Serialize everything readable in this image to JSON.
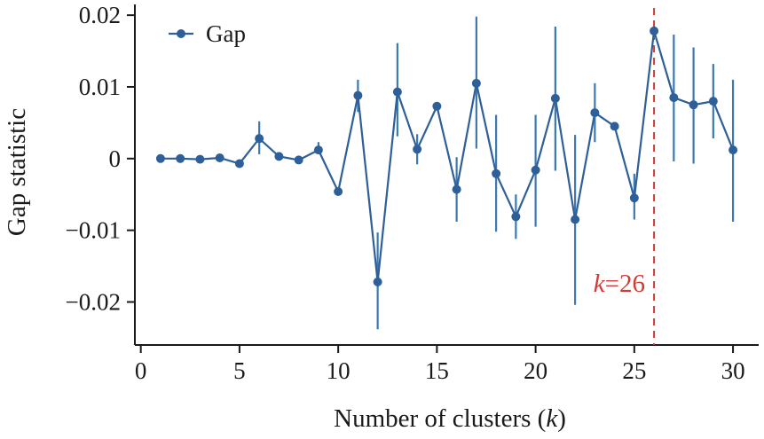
{
  "chart_data": {
    "type": "line",
    "xlabel": "Number of clusters (",
    "xlabel_var": "k",
    "xlabel_end": ")",
    "ylabel": "Gap statistic",
    "xlim": [
      -0.3,
      31.3
    ],
    "ylim": [
      -0.026,
      0.0215
    ],
    "xticks": [
      0,
      5,
      10,
      15,
      20,
      25,
      30
    ],
    "xtick_labels": [
      "0",
      "5",
      "10",
      "15",
      "20",
      "25",
      "30"
    ],
    "yticks": [
      -0.02,
      -0.01,
      0,
      0.01,
      0.02
    ],
    "ytick_labels": [
      "−0.02",
      "−0.01",
      "0",
      "0.01",
      "0.02"
    ],
    "grid": false,
    "legend_position": "top-left",
    "series": [
      {
        "name": "Gap",
        "color": "#2e5f99",
        "errorbar_color": "#3b79b0",
        "x": [
          1,
          2,
          3,
          4,
          5,
          6,
          7,
          8,
          9,
          10,
          11,
          12,
          13,
          14,
          15,
          16,
          17,
          18,
          19,
          20,
          21,
          22,
          23,
          24,
          25,
          26,
          27,
          28,
          29,
          30
        ],
        "y": [
          0.0,
          0.0,
          -0.0001,
          0.0001,
          -0.0007,
          0.0028,
          0.0003,
          -0.0002,
          0.0012,
          -0.0046,
          0.0088,
          -0.0172,
          0.0093,
          0.0013,
          0.0073,
          -0.0043,
          0.0105,
          -0.0021,
          -0.0081,
          -0.0016,
          0.0084,
          -0.0085,
          0.0064,
          0.0045,
          -0.0055,
          0.0178,
          0.0085,
          0.0075,
          0.008,
          0.0012
        ],
        "err_low": [
          0.0,
          0.0,
          -0.0001,
          0.0001,
          -0.0007,
          0.0006,
          0.0003,
          -0.0002,
          0.0007,
          -0.0046,
          0.0065,
          -0.0238,
          0.0031,
          -0.0008,
          0.0073,
          -0.0088,
          0.0014,
          -0.0102,
          -0.0112,
          -0.0095,
          -0.0017,
          -0.0204,
          0.0023,
          0.0045,
          -0.0085,
          0.0178,
          -0.0004,
          -0.0007,
          0.0028,
          -0.0088
        ],
        "err_high": [
          0.0,
          0.0,
          -0.0001,
          0.0001,
          -0.0007,
          0.0052,
          0.0003,
          -0.0002,
          0.0023,
          -0.0046,
          0.011,
          -0.0103,
          0.0161,
          0.0034,
          0.0073,
          0.0002,
          0.0198,
          0.0061,
          -0.005,
          0.0061,
          0.0184,
          0.0033,
          0.0105,
          0.0045,
          -0.0021,
          0.0178,
          0.0173,
          0.0155,
          0.0132,
          0.011
        ]
      }
    ],
    "annotation": {
      "x": 26,
      "label_var": "k",
      "label_rest": "=26",
      "color": "#d13a35"
    }
  }
}
